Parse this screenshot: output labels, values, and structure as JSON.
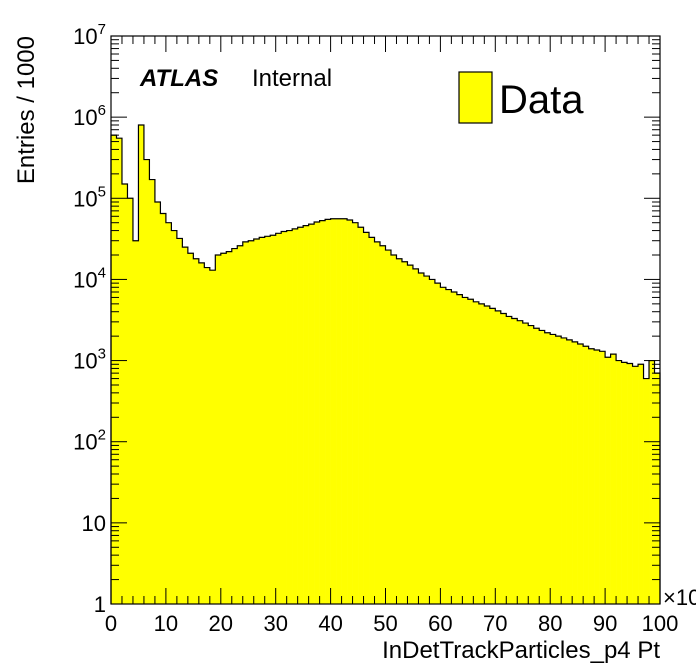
{
  "chart_data": {
    "type": "histogram",
    "title": "",
    "xlabel": "InDetTrackParticles_p4 Pt",
    "ylabel": "Entries / 1000",
    "x_multiplier_label": "×10",
    "xlim": [
      0,
      100
    ],
    "ylim": [
      1,
      10000000
    ],
    "log_y": true,
    "grid": false,
    "fill_color": "#ffff00",
    "line_color": "#000000",
    "label_atlas": "ATLAS",
    "label_status": "Internal",
    "legend": {
      "position": "top-right",
      "entries": [
        "Data"
      ]
    },
    "x_ticks": [
      0,
      10,
      20,
      30,
      40,
      50,
      60,
      70,
      80,
      90,
      100
    ],
    "y_ticks": [
      {
        "value": 1,
        "base": "1",
        "exp": ""
      },
      {
        "value": 10,
        "base": "10",
        "exp": ""
      },
      {
        "value": 100,
        "base": "10",
        "exp": "2"
      },
      {
        "value": 1000,
        "base": "10",
        "exp": "3"
      },
      {
        "value": 10000,
        "base": "10",
        "exp": "4"
      },
      {
        "value": 100000,
        "base": "10",
        "exp": "5"
      },
      {
        "value": 1000000,
        "base": "10",
        "exp": "6"
      },
      {
        "value": 10000000,
        "base": "10",
        "exp": "7"
      }
    ],
    "bin_width": 1,
    "series": [
      {
        "name": "Data",
        "bin_low_edges": [
          0,
          1,
          2,
          3,
          4,
          5,
          6,
          7,
          8,
          9,
          10,
          11,
          12,
          13,
          14,
          15,
          16,
          17,
          18,
          19,
          20,
          21,
          22,
          23,
          24,
          25,
          26,
          27,
          28,
          29,
          30,
          31,
          32,
          33,
          34,
          35,
          36,
          37,
          38,
          39,
          40,
          41,
          42,
          43,
          44,
          45,
          46,
          47,
          48,
          49,
          50,
          51,
          52,
          53,
          54,
          55,
          56,
          57,
          58,
          59,
          60,
          61,
          62,
          63,
          64,
          65,
          66,
          67,
          68,
          69,
          70,
          71,
          72,
          73,
          74,
          75,
          76,
          77,
          78,
          79,
          80,
          81,
          82,
          83,
          84,
          85,
          86,
          87,
          88,
          89,
          90,
          91,
          92,
          93,
          94,
          95,
          96,
          97,
          98,
          99
        ],
        "values": [
          600000,
          550000,
          150000,
          100000,
          30000,
          800000,
          300000,
          170000,
          90000,
          65000,
          50000,
          40000,
          32000,
          25000,
          21000,
          18000,
          16000,
          14000,
          13000,
          20000,
          21000,
          22000,
          24000,
          26000,
          29000,
          30000,
          31500,
          33000,
          34000,
          35000,
          37000,
          39000,
          40000,
          42000,
          44000,
          46000,
          48000,
          51000,
          53000,
          55000,
          56000,
          56000,
          56000,
          54000,
          50000,
          44000,
          38000,
          33000,
          29000,
          26000,
          23000,
          20000,
          18000,
          16500,
          15000,
          13500,
          12000,
          11000,
          10000,
          9000,
          8000,
          7500,
          7000,
          6500,
          6000,
          5700,
          5300,
          5000,
          4700,
          4400,
          4100,
          3800,
          3500,
          3300,
          3100,
          2900,
          2700,
          2500,
          2350,
          2200,
          2100,
          2000,
          1900,
          1800,
          1700,
          1600,
          1500,
          1400,
          1350,
          1300,
          1100,
          1200,
          1000,
          950,
          920,
          850,
          900,
          600,
          1000,
          700
        ]
      }
    ]
  }
}
